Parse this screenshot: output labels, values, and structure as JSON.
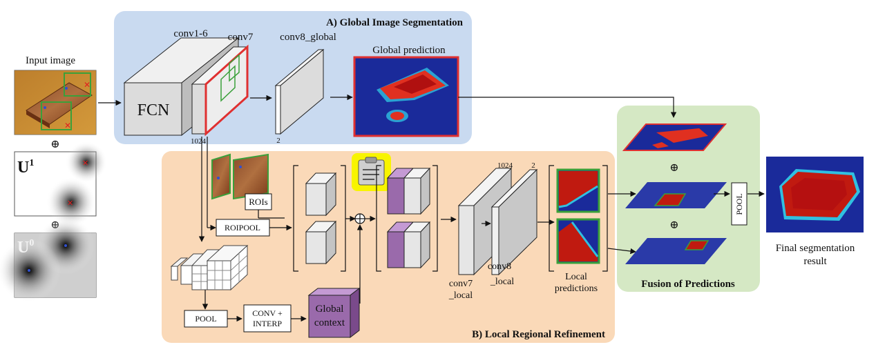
{
  "sections": {
    "global_title": "A) Global Image Segmentation",
    "local_title": "B) Local Regional Refinement",
    "fusion_title": "Fusion of Predictions"
  },
  "input": {
    "title": "Input image",
    "u1_base": "U",
    "u1_sup": "1",
    "u0_base": "U",
    "u0_sup": "0",
    "oplus": "⊕"
  },
  "global": {
    "conv1_6": "conv1-6",
    "conv7": "conv7",
    "conv8": "conv8_global",
    "fcn": "FCN",
    "dim_1024": "1024",
    "dim_2": "2",
    "prediction_title": "Global prediction"
  },
  "local": {
    "rois": "ROIs",
    "roipool": "ROIPOOL",
    "pool": "POOL",
    "conv_interp_1": "CONV +",
    "conv_interp_2": "INTERP",
    "global_context_1": "Global",
    "global_context_2": "context",
    "oplus": "⊕",
    "dim_1024": "1024",
    "dim_2": "2",
    "conv7_local_1": "conv7",
    "conv7_local_2": "_local",
    "conv8_local_1": "conv8",
    "conv8_local_2": "_local",
    "local_predictions_1": "Local",
    "local_predictions_2": "predictions"
  },
  "fusion": {
    "oplus": "⊕",
    "pool": "POOL"
  },
  "output": {
    "final_1": "Final segmentation",
    "final_2": "result"
  },
  "colors": {
    "global_bg": "#c9daf0",
    "local_bg": "#fad9b8",
    "fusion_bg": "#d5e8c4",
    "highlight_red": "#e03030",
    "roi_green": "#3aa03a",
    "context_purple": "#9a6aab",
    "heat_blue": "#1a2a9a"
  }
}
